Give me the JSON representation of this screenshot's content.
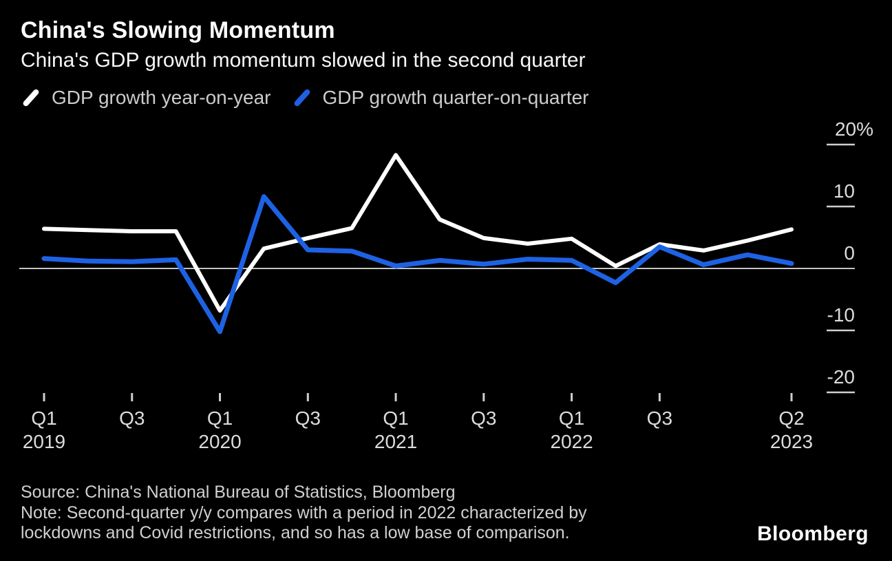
{
  "header": {
    "title": "China's Slowing Momentum",
    "subtitle": "China's GDP growth momentum slowed in the second quarter"
  },
  "legend": [
    {
      "label": "GDP growth year-on-year",
      "color": "#ffffff"
    },
    {
      "label": "GDP growth quarter-on-quarter",
      "color": "#1e62e4"
    }
  ],
  "chart_data": {
    "type": "line",
    "x": [
      "Q1 2019",
      "Q2 2019",
      "Q3 2019",
      "Q4 2019",
      "Q1 2020",
      "Q2 2020",
      "Q3 2020",
      "Q4 2020",
      "Q1 2021",
      "Q2 2021",
      "Q3 2021",
      "Q4 2021",
      "Q1 2022",
      "Q2 2022",
      "Q3 2022",
      "Q4 2022",
      "Q1 2023",
      "Q2 2023"
    ],
    "series": [
      {
        "id": "yoy",
        "name": "GDP growth year-on-year",
        "color": "#ffffff",
        "stroke_width": 6,
        "values": [
          6.4,
          6.2,
          6.0,
          6.0,
          -6.8,
          3.2,
          4.9,
          6.5,
          18.3,
          7.9,
          4.9,
          4.0,
          4.8,
          0.4,
          3.9,
          2.9,
          4.5,
          6.3
        ]
      },
      {
        "id": "qoq",
        "name": "GDP growth quarter-on-quarter",
        "color": "#1e62e4",
        "stroke_width": 7,
        "values": [
          1.6,
          1.2,
          1.1,
          1.4,
          -10.2,
          11.6,
          3.0,
          2.8,
          0.4,
          1.3,
          0.7,
          1.5,
          1.3,
          -2.3,
          3.5,
          0.6,
          2.2,
          0.8
        ]
      }
    ],
    "unit": "%",
    "ylim": [
      -25,
      22
    ],
    "yticks": [
      {
        "value": 20,
        "label": "20%"
      },
      {
        "value": 10,
        "label": "10"
      },
      {
        "value": 0,
        "label": "0"
      },
      {
        "value": -10,
        "label": "-10"
      },
      {
        "value": -20,
        "label": "-20"
      }
    ],
    "xticks": [
      {
        "index": 0,
        "quarter": "Q1",
        "year": "2019"
      },
      {
        "index": 2,
        "quarter": "Q3"
      },
      {
        "index": 4,
        "quarter": "Q1",
        "year": "2020"
      },
      {
        "index": 6,
        "quarter": "Q3"
      },
      {
        "index": 8,
        "quarter": "Q1",
        "year": "2021"
      },
      {
        "index": 10,
        "quarter": "Q3"
      },
      {
        "index": 12,
        "quarter": "Q1",
        "year": "2022"
      },
      {
        "index": 14,
        "quarter": "Q3"
      },
      {
        "index": 17,
        "quarter": "Q2",
        "year": "2023"
      }
    ],
    "grid": "zero-line-only",
    "legend_position": "top-left",
    "axis_colors": {
      "label": "#dcdcdc",
      "tick": "#cfcfcf",
      "zero_line": "#c4c4c4"
    }
  },
  "footer": {
    "source": "Source: China's National Bureau of Statistics, Bloomberg",
    "note_lines": [
      "Note: Second-quarter y/y compares with a period in 2022 characterized by",
      "lockdowns and Covid restrictions, and so has a low base of comparison."
    ],
    "brand": "Bloomberg"
  }
}
